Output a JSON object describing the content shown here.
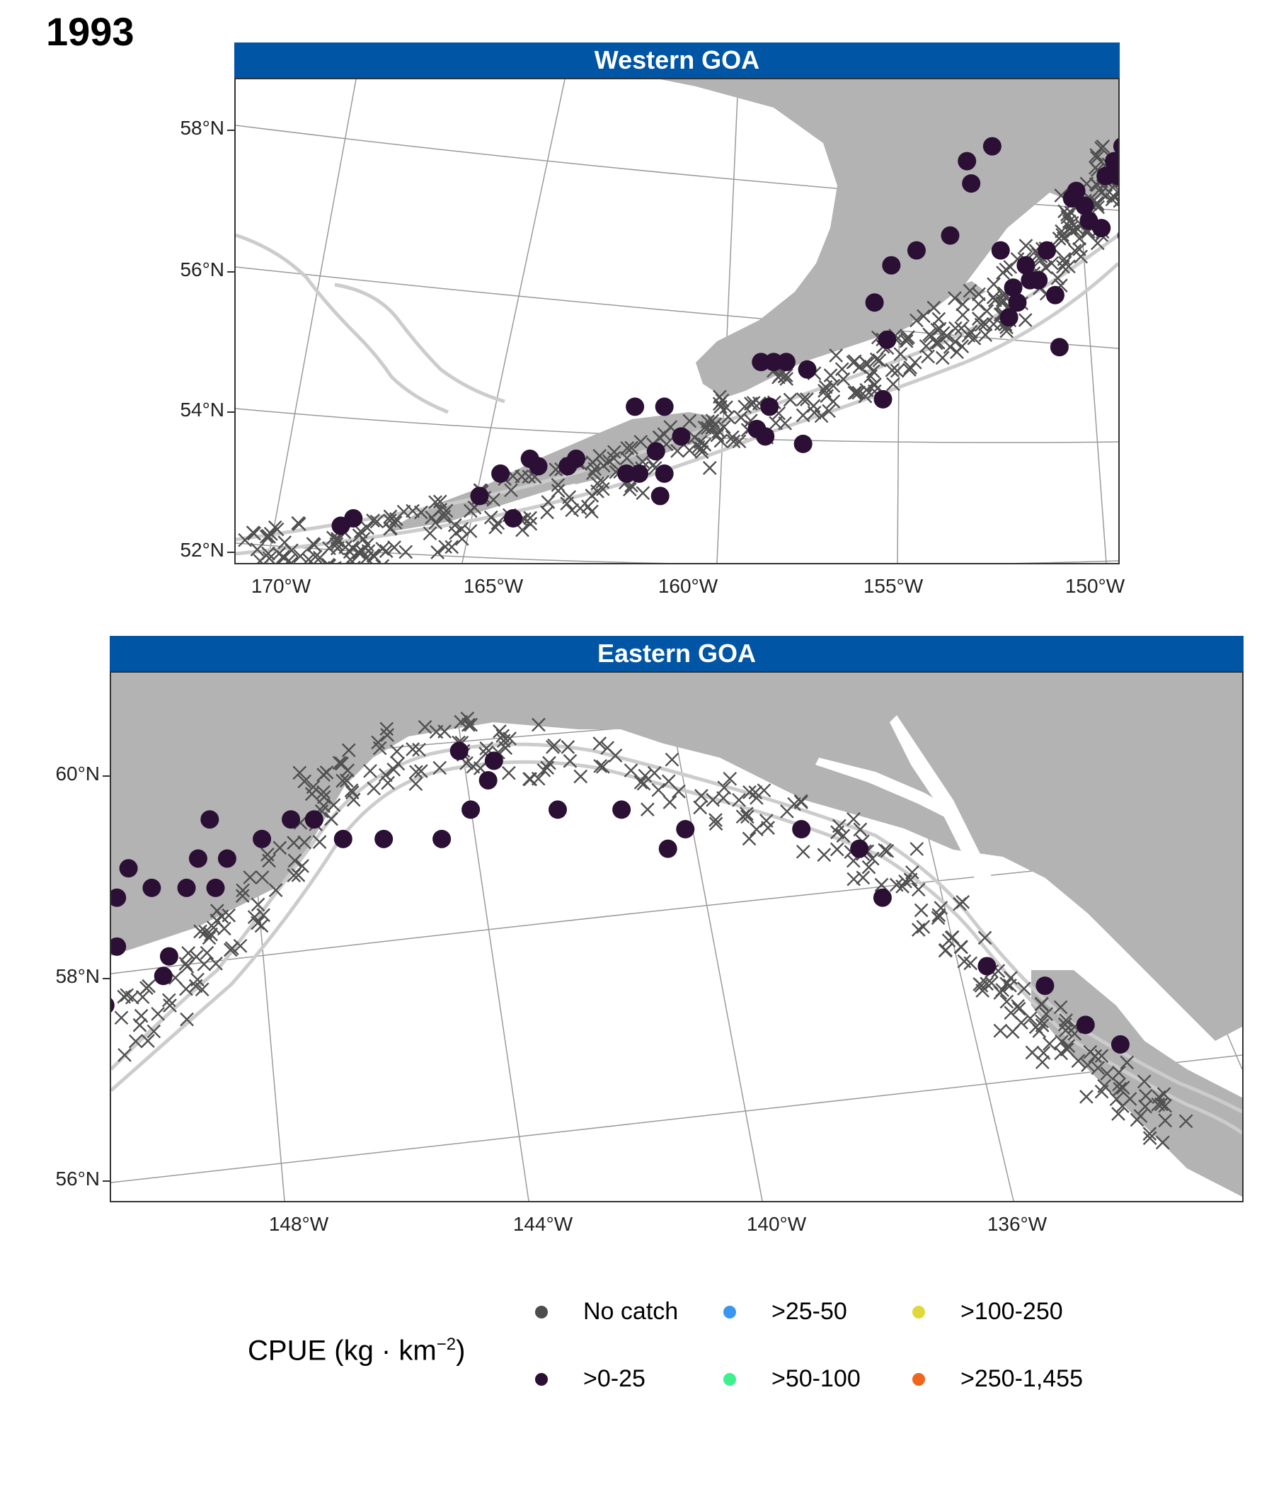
{
  "year": "1993",
  "colors": {
    "strip": "#0055a5",
    "land": "#b3b3b3",
    "isobath": "#cccccc",
    "graticule": "#9a9a9a",
    "no_catch": "#505050",
    "low_catch": "#2b0f35"
  },
  "panels": [
    {
      "id": "western",
      "title": "Western GOA",
      "y_ticks": [
        "58°N",
        "56°N",
        "54°N",
        "52°N"
      ],
      "x_ticks": [
        "170°W",
        "165°W",
        "160°W",
        "155°W",
        "150°W"
      ]
    },
    {
      "id": "eastern",
      "title": "Eastern GOA",
      "y_ticks": [
        "60°N",
        "58°N",
        "56°N"
      ],
      "x_ticks": [
        "148°W",
        "144°W",
        "140°W",
        "136°W"
      ]
    }
  ],
  "legend": {
    "title": "CPUE (kg · km",
    "title_sup": "−2",
    "title_close": ")",
    "items": [
      {
        "label": "No catch",
        "color": "#4d4d4d"
      },
      {
        "label": ">0-25",
        "color": "#2b0f35"
      },
      {
        "label": ">25-50",
        "color": "#3a96f0"
      },
      {
        "label": ">50-100",
        "color": "#3ff08f"
      },
      {
        "label": ">100-250",
        "color": "#e0d83a"
      },
      {
        "label": ">250-1,455",
        "color": "#f0641c"
      }
    ]
  },
  "chart_data": {
    "type": "scatter",
    "panels": [
      {
        "title": "Western GOA",
        "xlim": [
          -170.5,
          -149.5
        ],
        "ylim": [
          52.0,
          58.5
        ],
        "catch_stations": [
          [
            -168.0,
            52.5
          ],
          [
            -167.7,
            52.6
          ],
          [
            -164.7,
            52.9
          ],
          [
            -164.2,
            53.2
          ],
          [
            -163.9,
            52.6
          ],
          [
            -163.5,
            53.4
          ],
          [
            -163.3,
            53.3
          ],
          [
            -162.6,
            53.3
          ],
          [
            -162.4,
            53.4
          ],
          [
            -161.2,
            53.2
          ],
          [
            -161.0,
            54.1
          ],
          [
            -160.9,
            53.2
          ],
          [
            -160.5,
            53.5
          ],
          [
            -160.4,
            52.9
          ],
          [
            -160.3,
            53.2
          ],
          [
            -160.3,
            54.1
          ],
          [
            -159.9,
            53.7
          ],
          [
            -158.1,
            53.8
          ],
          [
            -157.9,
            53.7
          ],
          [
            -157.8,
            54.1
          ],
          [
            -157.0,
            53.6
          ],
          [
            -158.0,
            54.7
          ],
          [
            -157.7,
            54.7
          ],
          [
            -157.4,
            54.7
          ],
          [
            -156.9,
            54.6
          ],
          [
            -155.1,
            54.2
          ],
          [
            -155.0,
            55.0
          ],
          [
            -155.3,
            55.5
          ],
          [
            -154.9,
            56.0
          ],
          [
            -154.3,
            56.2
          ],
          [
            -153.5,
            56.4
          ],
          [
            -153.1,
            57.4
          ],
          [
            -153.0,
            57.1
          ],
          [
            -152.5,
            57.6
          ],
          [
            -152.3,
            56.2
          ],
          [
            -152.1,
            55.3
          ],
          [
            -152.0,
            55.7
          ],
          [
            -151.9,
            55.5
          ],
          [
            -151.7,
            56.0
          ],
          [
            -151.6,
            55.8
          ],
          [
            -151.4,
            55.8
          ],
          [
            -151.2,
            56.2
          ],
          [
            -151.0,
            55.6
          ],
          [
            -150.9,
            54.9
          ],
          [
            -150.6,
            56.9
          ],
          [
            -150.5,
            57.0
          ],
          [
            -150.3,
            56.8
          ],
          [
            -150.2,
            56.6
          ],
          [
            -149.9,
            56.5
          ],
          [
            -149.8,
            57.2
          ],
          [
            -149.6,
            57.4
          ],
          [
            -149.5,
            57.2
          ],
          [
            -149.4,
            57.6
          ],
          [
            -149.0,
            57.5
          ],
          [
            -148.8,
            57.3
          ],
          [
            -148.9,
            56.7
          ],
          [
            -149.3,
            56.4
          ],
          [
            -148.1,
            57.3
          ]
        ]
      },
      {
        "title": "Eastern GOA",
        "xlim": [
          -151.0,
          -131.5
        ],
        "ylim": [
          55.8,
          61.2
        ],
        "catch_stations": [
          [
            -150.9,
            58.4
          ],
          [
            -150.9,
            58.9
          ],
          [
            -150.7,
            59.2
          ],
          [
            -150.1,
            58.1
          ],
          [
            -150.3,
            59.0
          ],
          [
            -150.0,
            58.3
          ],
          [
            -149.7,
            59.0
          ],
          [
            -149.5,
            59.3
          ],
          [
            -149.2,
            59.0
          ],
          [
            -149.3,
            59.7
          ],
          [
            -149.0,
            59.3
          ],
          [
            -148.4,
            59.5
          ],
          [
            -147.9,
            59.7
          ],
          [
            -147.5,
            59.7
          ],
          [
            -147.0,
            59.5
          ],
          [
            -146.3,
            59.5
          ],
          [
            -145.3,
            59.5
          ],
          [
            -144.8,
            59.8
          ],
          [
            -145.0,
            60.4
          ],
          [
            -144.5,
            60.1
          ],
          [
            -144.4,
            60.3
          ],
          [
            -143.3,
            59.8
          ],
          [
            -142.2,
            59.8
          ],
          [
            -141.4,
            59.4
          ],
          [
            -141.1,
            59.6
          ],
          [
            -139.1,
            59.6
          ],
          [
            -138.1,
            59.4
          ],
          [
            -137.7,
            58.9
          ],
          [
            -135.9,
            58.2
          ],
          [
            -134.9,
            58.0
          ],
          [
            -134.2,
            57.6
          ],
          [
            -133.6,
            57.4
          ],
          [
            -151.1,
            57.8
          ]
        ]
      }
    ]
  }
}
